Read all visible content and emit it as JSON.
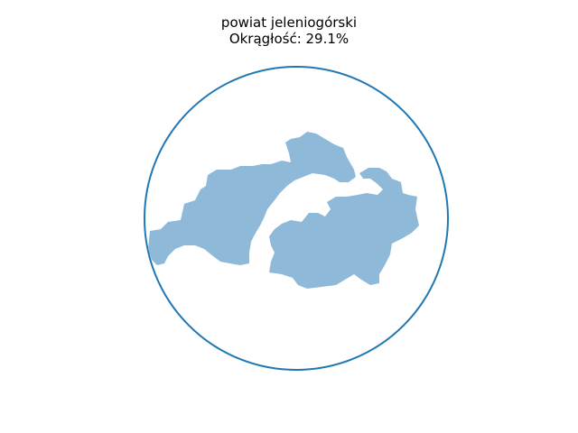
{
  "figure": {
    "title_line1": "powiat jeleniogórski",
    "title_line2": "Okrągłość: 29.1%",
    "shape_color": "#8fb9d9",
    "circle_color": "#1f77b4"
  }
}
